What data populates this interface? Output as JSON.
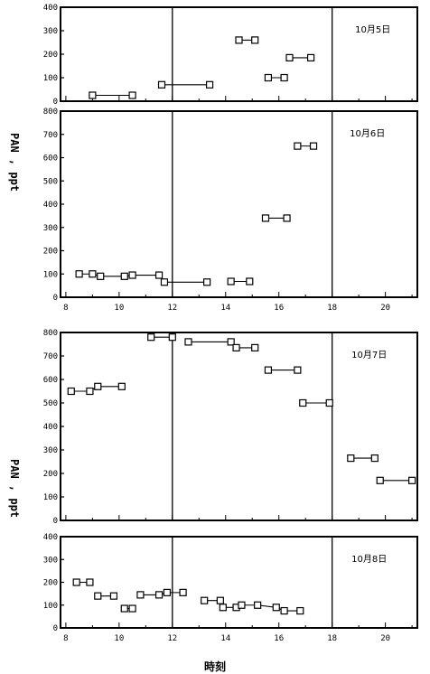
{
  "chart_data": [
    {
      "type": "line",
      "title": "10月5日",
      "ylim": [
        0,
        400
      ],
      "yticks": [
        "0",
        "100",
        "200",
        "300",
        "400"
      ],
      "xlim": [
        7.8,
        21.2
      ],
      "markers": "open-square",
      "vlines": [
        12,
        18
      ],
      "series": [
        {
          "values": [
            [
              9.0,
              25
            ],
            [
              10.5,
              25
            ]
          ]
        },
        {
          "values": [
            [
              11.6,
              70
            ],
            [
              13.4,
              70
            ]
          ]
        },
        {
          "values": [
            [
              14.5,
              260
            ],
            [
              15.1,
              260
            ]
          ]
        },
        {
          "values": [
            [
              15.6,
              100
            ],
            [
              16.2,
              100
            ]
          ]
        },
        {
          "values": [
            [
              16.4,
              185
            ],
            [
              17.2,
              185
            ]
          ]
        }
      ]
    },
    {
      "type": "line",
      "title": "10月6日",
      "ylim": [
        0,
        800
      ],
      "yticks": [
        "0",
        "100",
        "200",
        "300",
        "400",
        "500",
        "600",
        "700",
        "800"
      ],
      "xlim": [
        7.8,
        21.2
      ],
      "xticks": [
        "8",
        "10",
        "12",
        "14",
        "16",
        "18",
        "20"
      ],
      "markers": "open-square",
      "vlines": [
        12,
        18
      ],
      "series": [
        {
          "values": [
            [
              8.5,
              100
            ],
            [
              9.0,
              100
            ],
            [
              9.3,
              90
            ],
            [
              10.2,
              90
            ],
            [
              10.5,
              95
            ],
            [
              11.5,
              95
            ],
            [
              11.7,
              65
            ],
            [
              13.3,
              65
            ]
          ]
        },
        {
          "values": [
            [
              14.2,
              68
            ],
            [
              14.9,
              68
            ]
          ]
        },
        {
          "values": [
            [
              15.5,
              340
            ],
            [
              16.3,
              340
            ]
          ]
        },
        {
          "values": [
            [
              16.7,
              650
            ],
            [
              17.3,
              650
            ]
          ]
        }
      ]
    },
    {
      "type": "line",
      "title": "10月7日",
      "ylim": [
        0,
        800
      ],
      "yticks": [
        "0",
        "100",
        "200",
        "300",
        "400",
        "500",
        "600",
        "700",
        "800"
      ],
      "xlim": [
        7.8,
        21.2
      ],
      "markers": "open-square",
      "vlines": [
        12,
        18
      ],
      "series": [
        {
          "values": [
            [
              8.2,
              550
            ],
            [
              8.9,
              550
            ],
            [
              9.2,
              570
            ],
            [
              10.1,
              570
            ]
          ]
        },
        {
          "values": [
            [
              11.2,
              780
            ],
            [
              12.0,
              780
            ]
          ]
        },
        {
          "values": [
            [
              12.6,
              760
            ],
            [
              14.2,
              760
            ],
            [
              14.4,
              735
            ],
            [
              15.1,
              735
            ]
          ]
        },
        {
          "values": [
            [
              15.6,
              640
            ],
            [
              16.7,
              640
            ]
          ]
        },
        {
          "values": [
            [
              16.9,
              500
            ],
            [
              17.9,
              500
            ]
          ]
        },
        {
          "values": [
            [
              18.7,
              265
            ],
            [
              19.6,
              265
            ]
          ]
        },
        {
          "values": [
            [
              19.8,
              170
            ],
            [
              21.0,
              170
            ]
          ]
        }
      ]
    },
    {
      "type": "line",
      "title": "10月8日",
      "ylim": [
        0,
        400
      ],
      "yticks": [
        "0",
        "100",
        "200",
        "300",
        "400"
      ],
      "xlim": [
        7.8,
        21.2
      ],
      "xticks": [
        "8",
        "10",
        "12",
        "14",
        "16",
        "18",
        "20"
      ],
      "markers": "open-square",
      "vlines": [
        12,
        18
      ],
      "series": [
        {
          "values": [
            [
              8.4,
              200
            ],
            [
              8.9,
              200
            ]
          ]
        },
        {
          "values": [
            [
              9.2,
              140
            ],
            [
              9.8,
              140
            ]
          ]
        },
        {
          "values": [
            [
              10.2,
              85
            ],
            [
              10.5,
              85
            ]
          ]
        },
        {
          "values": [
            [
              10.8,
              145
            ],
            [
              11.5,
              145
            ],
            [
              11.8,
              155
            ],
            [
              12.4,
              155
            ]
          ]
        },
        {
          "values": [
            [
              13.2,
              120
            ],
            [
              13.8,
              120
            ],
            [
              13.9,
              90
            ],
            [
              14.4,
              90
            ],
            [
              14.6,
              100
            ],
            [
              15.2,
              100
            ],
            [
              15.9,
              90
            ],
            [
              16.2,
              75
            ],
            [
              16.8,
              75
            ]
          ]
        }
      ]
    }
  ],
  "ylabel": "PAN , ppt",
  "xlabel": "時刻"
}
